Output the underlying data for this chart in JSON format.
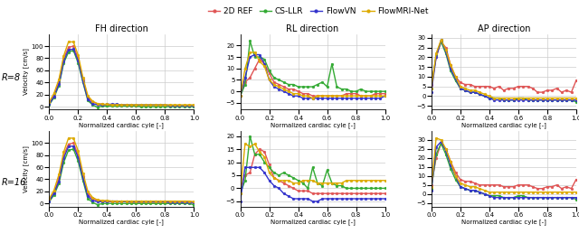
{
  "legend_labels": [
    "2D REF",
    "CS-LLR",
    "FlowVN",
    "FlowMRI-Net"
  ],
  "legend_colors": [
    "#e05555",
    "#33aa33",
    "#3333cc",
    "#ddaa00"
  ],
  "col_titles": [
    "FH direction",
    "RL direction",
    "AP direction"
  ],
  "row_labels": [
    "R=8",
    "R=16"
  ],
  "xlabel": "Normalized cardiac cyle [-]",
  "marker": "o",
  "markersize": 2.0,
  "linewidth": 1.0,
  "fh_r8": {
    "x": [
      0.0,
      0.033,
      0.067,
      0.1,
      0.133,
      0.167,
      0.2,
      0.233,
      0.267,
      0.3,
      0.333,
      0.367,
      0.4,
      0.433,
      0.467,
      0.5,
      0.533,
      0.567,
      0.6,
      0.633,
      0.667,
      0.7,
      0.733,
      0.767,
      0.8,
      0.833,
      0.867,
      0.9,
      0.933,
      0.967,
      1.0
    ],
    "ref": [
      5,
      18,
      41,
      80,
      98,
      100,
      80,
      45,
      15,
      8,
      5,
      4,
      3,
      3,
      3,
      3,
      3,
      2,
      2,
      2,
      2,
      2,
      2,
      2,
      2,
      2,
      2,
      2,
      2,
      2,
      2
    ],
    "csllr": [
      3,
      15,
      35,
      72,
      90,
      93,
      72,
      40,
      10,
      3,
      -1,
      1,
      1,
      1,
      1,
      1,
      1,
      1,
      1,
      0,
      0,
      0,
      0,
      0,
      0,
      0,
      0,
      0,
      0,
      0,
      0
    ],
    "flowvn": [
      4,
      17,
      37,
      75,
      94,
      95,
      76,
      42,
      12,
      5,
      3,
      3,
      4,
      4,
      4,
      3,
      3,
      3,
      3,
      3,
      3,
      3,
      3,
      3,
      3,
      2,
      2,
      2,
      2,
      2,
      2
    ],
    "flowmri": [
      8,
      22,
      45,
      84,
      107,
      107,
      85,
      48,
      18,
      9,
      5,
      4,
      4,
      3,
      3,
      3,
      3,
      3,
      3,
      3,
      3,
      3,
      3,
      3,
      3,
      3,
      3,
      3,
      3,
      3,
      3
    ],
    "ylim": [
      -5,
      120
    ],
    "yticks": [
      0,
      20,
      40,
      60,
      80,
      100
    ]
  },
  "rl_r8": {
    "x": [
      0.0,
      0.033,
      0.067,
      0.1,
      0.133,
      0.167,
      0.2,
      0.233,
      0.267,
      0.3,
      0.333,
      0.367,
      0.4,
      0.433,
      0.467,
      0.5,
      0.533,
      0.567,
      0.6,
      0.633,
      0.667,
      0.7,
      0.733,
      0.767,
      0.8,
      0.833,
      0.867,
      0.9,
      0.933,
      0.967,
      1.0
    ],
    "ref": [
      -2,
      4,
      6,
      10,
      14,
      12,
      8,
      4,
      3,
      2,
      1,
      1,
      0,
      -1,
      -1,
      -2,
      -2,
      -2,
      -2,
      -2,
      -2,
      -2,
      -1,
      -1,
      -1,
      -2,
      -2,
      -2,
      -1,
      -1,
      -1
    ],
    "csllr": [
      -2,
      3,
      22,
      15,
      15,
      14,
      9,
      6,
      5,
      4,
      3,
      3,
      2,
      2,
      2,
      2,
      3,
      4,
      2,
      12,
      2,
      1,
      1,
      0,
      0,
      1,
      0,
      0,
      0,
      0,
      0
    ],
    "flowvn": [
      -2,
      6,
      15,
      16,
      16,
      12,
      5,
      2,
      1,
      0,
      -1,
      -2,
      -2,
      -3,
      -3,
      -3,
      -3,
      -3,
      -3,
      -3,
      -3,
      -3,
      -3,
      -3,
      -3,
      -3,
      -3,
      -3,
      -3,
      -3,
      -2
    ],
    "flowmri": [
      -2,
      10,
      17,
      17,
      13,
      11,
      5,
      3,
      2,
      1,
      0,
      -1,
      -1,
      -2,
      -2,
      -3,
      -2,
      -2,
      -2,
      -2,
      -2,
      -2,
      -2,
      -2,
      -2,
      -2,
      -2,
      -2,
      -2,
      -2,
      -2
    ],
    "ylim": [
      -8,
      25
    ],
    "yticks": [
      -5,
      0,
      5,
      10,
      15,
      20
    ]
  },
  "ap_r8": {
    "x": [
      0.0,
      0.033,
      0.067,
      0.1,
      0.133,
      0.167,
      0.2,
      0.233,
      0.267,
      0.3,
      0.333,
      0.367,
      0.4,
      0.433,
      0.467,
      0.5,
      0.533,
      0.567,
      0.6,
      0.633,
      0.667,
      0.7,
      0.733,
      0.767,
      0.8,
      0.833,
      0.867,
      0.9,
      0.933,
      0.967,
      1.0
    ],
    "ref": [
      6,
      20,
      28,
      25,
      16,
      10,
      7,
      6,
      6,
      5,
      5,
      5,
      5,
      4,
      5,
      3,
      4,
      4,
      5,
      5,
      5,
      4,
      2,
      2,
      3,
      3,
      4,
      2,
      3,
      2,
      8
    ],
    "csllr": [
      4,
      21,
      28,
      22,
      13,
      8,
      4,
      3,
      2,
      2,
      1,
      0,
      -1,
      -1,
      -1,
      -2,
      -2,
      -2,
      -1,
      -1,
      -2,
      -2,
      -2,
      -2,
      -2,
      -2,
      -2,
      -2,
      -2,
      -2,
      -3
    ],
    "flowvn": [
      2,
      20,
      29,
      23,
      14,
      9,
      4,
      3,
      2,
      2,
      1,
      0,
      -1,
      -2,
      -2,
      -2,
      -2,
      -2,
      -2,
      -2,
      -2,
      -2,
      -2,
      -2,
      -2,
      -2,
      -2,
      -2,
      -2,
      -2,
      -2
    ],
    "flowmri": [
      4,
      22,
      29,
      24,
      16,
      10,
      5,
      4,
      3,
      3,
      2,
      1,
      0,
      -1,
      -1,
      -1,
      -1,
      -1,
      -1,
      -1,
      -1,
      -1,
      -1,
      -1,
      -1,
      -1,
      -1,
      -1,
      -1,
      -1,
      -1
    ],
    "ylim": [
      -7,
      32
    ],
    "yticks": [
      -5,
      0,
      5,
      10,
      15,
      20,
      25,
      30
    ]
  },
  "fh_r16": {
    "x": [
      0.0,
      0.033,
      0.067,
      0.1,
      0.133,
      0.167,
      0.2,
      0.233,
      0.267,
      0.3,
      0.333,
      0.367,
      0.4,
      0.433,
      0.467,
      0.5,
      0.533,
      0.567,
      0.6,
      0.633,
      0.667,
      0.7,
      0.733,
      0.767,
      0.8,
      0.833,
      0.867,
      0.9,
      0.933,
      0.967,
      1.0
    ],
    "ref": [
      5,
      18,
      42,
      80,
      98,
      100,
      80,
      45,
      15,
      8,
      5,
      4,
      3,
      3,
      3,
      3,
      3,
      2,
      2,
      2,
      2,
      2,
      2,
      2,
      2,
      2,
      2,
      2,
      2,
      2,
      2
    ],
    "csllr": [
      3,
      14,
      33,
      68,
      88,
      90,
      70,
      38,
      8,
      2,
      -2,
      0,
      0,
      0,
      0,
      0,
      0,
      0,
      0,
      0,
      0,
      0,
      0,
      0,
      0,
      0,
      0,
      0,
      0,
      0,
      -2
    ],
    "flowvn": [
      4,
      17,
      37,
      75,
      94,
      95,
      76,
      42,
      12,
      5,
      3,
      3,
      4,
      4,
      4,
      3,
      3,
      3,
      3,
      3,
      3,
      3,
      3,
      3,
      3,
      2,
      2,
      2,
      2,
      2,
      2
    ],
    "flowmri": [
      8,
      22,
      48,
      85,
      108,
      108,
      87,
      50,
      20,
      10,
      6,
      5,
      5,
      4,
      4,
      4,
      4,
      4,
      4,
      4,
      4,
      4,
      4,
      4,
      4,
      4,
      4,
      4,
      4,
      4,
      3
    ],
    "ylim": [
      -5,
      120
    ],
    "yticks": [
      0,
      20,
      40,
      60,
      80,
      100
    ]
  },
  "rl_r16": {
    "x": [
      0.0,
      0.033,
      0.067,
      0.1,
      0.133,
      0.167,
      0.2,
      0.233,
      0.267,
      0.3,
      0.333,
      0.367,
      0.4,
      0.433,
      0.467,
      0.5,
      0.533,
      0.567,
      0.6,
      0.633,
      0.667,
      0.7,
      0.733,
      0.767,
      0.8,
      0.833,
      0.867,
      0.9,
      0.933,
      0.967,
      1.0
    ],
    "ref": [
      0,
      5,
      6,
      13,
      15,
      14,
      9,
      4,
      3,
      2,
      1,
      0,
      -1,
      -1,
      -1,
      -2,
      -2,
      -2,
      -2,
      -2,
      -2,
      -2,
      -2,
      -2,
      -2,
      -2,
      -2,
      -2,
      -2,
      -2,
      -2
    ],
    "csllr": [
      -2,
      3,
      20,
      13,
      13,
      10,
      8,
      6,
      5,
      6,
      5,
      4,
      3,
      2,
      0,
      8,
      2,
      1,
      7,
      2,
      1,
      1,
      0,
      0,
      0,
      0,
      0,
      0,
      0,
      0,
      0
    ],
    "flowvn": [
      -5,
      8,
      8,
      8,
      8,
      6,
      3,
      1,
      0,
      -2,
      -3,
      -4,
      -4,
      -4,
      -4,
      -5,
      -5,
      -4,
      -4,
      -4,
      -4,
      -4,
      -4,
      -4,
      -4,
      -4,
      -4,
      -4,
      -4,
      -4,
      -4
    ],
    "flowmri": [
      -2,
      17,
      16,
      17,
      14,
      12,
      6,
      4,
      3,
      3,
      3,
      2,
      2,
      3,
      3,
      3,
      2,
      2,
      2,
      2,
      2,
      2,
      3,
      3,
      3,
      3,
      3,
      3,
      3,
      3,
      3
    ],
    "ylim": [
      -7,
      22
    ],
    "yticks": [
      -5,
      0,
      5,
      10,
      15,
      20
    ]
  },
  "ap_r16": {
    "x": [
      0.0,
      0.033,
      0.067,
      0.1,
      0.133,
      0.167,
      0.2,
      0.233,
      0.267,
      0.3,
      0.333,
      0.367,
      0.4,
      0.433,
      0.467,
      0.5,
      0.533,
      0.567,
      0.6,
      0.633,
      0.667,
      0.7,
      0.733,
      0.767,
      0.8,
      0.833,
      0.867,
      0.9,
      0.933,
      0.967,
      1.0
    ],
    "ref": [
      5,
      20,
      28,
      25,
      18,
      12,
      8,
      7,
      7,
      6,
      5,
      5,
      5,
      5,
      5,
      4,
      4,
      4,
      5,
      5,
      5,
      4,
      3,
      3,
      4,
      4,
      5,
      3,
      4,
      3,
      8
    ],
    "csllr": [
      3,
      22,
      28,
      22,
      14,
      8,
      4,
      3,
      2,
      2,
      1,
      0,
      -1,
      -1,
      -1,
      -2,
      -2,
      -2,
      -1,
      -1,
      -2,
      -2,
      -2,
      -2,
      -2,
      -2,
      -2,
      -2,
      -2,
      -2,
      -3
    ],
    "flowvn": [
      2,
      26,
      29,
      24,
      16,
      10,
      4,
      3,
      2,
      2,
      1,
      0,
      -1,
      -2,
      -2,
      -2,
      -2,
      -2,
      -2,
      -2,
      -2,
      -2,
      -2,
      -2,
      -2,
      -2,
      -2,
      -2,
      -2,
      -2,
      -2
    ],
    "flowmri": [
      4,
      31,
      30,
      25,
      18,
      10,
      6,
      5,
      4,
      4,
      3,
      2,
      1,
      1,
      1,
      1,
      1,
      1,
      1,
      1,
      1,
      1,
      1,
      1,
      1,
      1,
      1,
      1,
      1,
      1,
      1
    ],
    "ylim": [
      -7,
      35
    ],
    "yticks": [
      -5,
      0,
      5,
      10,
      15,
      20,
      25,
      30
    ]
  }
}
